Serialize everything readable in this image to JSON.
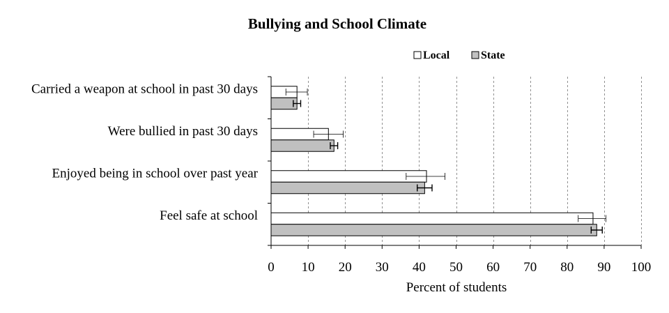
{
  "chart_data": {
    "type": "bar",
    "orientation": "horizontal",
    "title": "Bullying and School Climate",
    "xlabel": "Percent of students",
    "ylabel": "",
    "xlim": [
      0,
      100
    ],
    "x_ticks": [
      "0",
      "10",
      "20",
      "30",
      "40",
      "50",
      "60",
      "70",
      "80",
      "90",
      "100"
    ],
    "grid": "vertical dashed",
    "legend_position": "top-right",
    "categories": [
      "Carried a weapon at school in past 30 days",
      "Were bullied in past 30 days",
      "Enjoyed being in school over past year",
      "Feel safe at school"
    ],
    "series": [
      {
        "name": "Local",
        "color": "#ffffff",
        "values": [
          7,
          15.5,
          42,
          87
        ],
        "error_low": [
          4,
          11.5,
          36.5,
          83
        ],
        "error_high": [
          9.8,
          19.5,
          47,
          90.5
        ]
      },
      {
        "name": "State",
        "color": "#c0c0c0",
        "values": [
          7,
          17,
          41.5,
          88
        ],
        "error_low": [
          6,
          16,
          39.5,
          86.5
        ],
        "error_high": [
          8,
          18,
          43.5,
          89.5
        ]
      }
    ]
  }
}
